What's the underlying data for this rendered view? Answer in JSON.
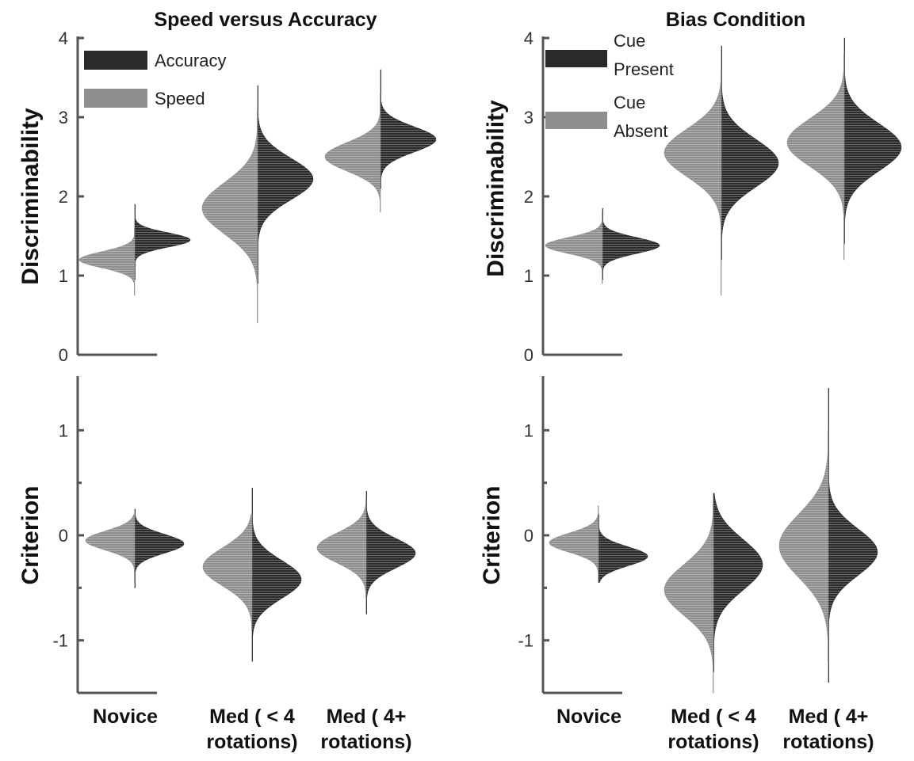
{
  "chart_data": [
    {
      "panel": "top-left",
      "type": "violin",
      "title": "Speed versus Accuracy",
      "ylabel": "Discriminability",
      "ylim": [
        0,
        4
      ],
      "yticks": [
        "0",
        "1",
        "2",
        "3",
        "4"
      ],
      "legend": {
        "position": "top-left",
        "entries": [
          [
            "Accuracy"
          ],
          [
            "Speed"
          ]
        ]
      },
      "series": [
        {
          "name": "Accuracy",
          "side": "right",
          "color": "#2a2a2a",
          "peaks": [
            1.45,
            2.22,
            2.72
          ],
          "spread": [
            0.09,
            0.26,
            0.16
          ],
          "range": [
            [
              0.95,
              1.9
            ],
            [
              0.9,
              3.4
            ],
            [
              2.1,
              3.6
            ]
          ]
        },
        {
          "name": "Speed",
          "side": "left",
          "color": "#8e8e8e",
          "peaks": [
            1.2,
            1.85,
            2.5
          ],
          "spread": [
            0.1,
            0.32,
            0.18
          ],
          "range": [
            [
              0.75,
              1.6
            ],
            [
              0.4,
              3.1
            ],
            [
              1.8,
              3.3
            ]
          ]
        }
      ]
    },
    {
      "panel": "top-right",
      "type": "violin",
      "title": "Bias Condition",
      "ylabel": "Discriminability",
      "ylim": [
        0,
        4
      ],
      "yticks": [
        "0",
        "1",
        "2",
        "3",
        "4"
      ],
      "legend": {
        "position": "top-left",
        "entries": [
          [
            "Cue",
            "Present"
          ],
          [
            "Cue",
            "Absent"
          ]
        ]
      },
      "series": [
        {
          "name": "Cue Present",
          "side": "right",
          "color": "#2a2a2a",
          "peaks": [
            1.38,
            2.42,
            2.62
          ],
          "spread": [
            0.1,
            0.3,
            0.3
          ],
          "range": [
            [
              0.95,
              1.85
            ],
            [
              1.2,
              3.9
            ],
            [
              1.4,
              4.0
            ]
          ]
        },
        {
          "name": "Cue Absent",
          "side": "left",
          "color": "#8e8e8e",
          "peaks": [
            1.38,
            2.55,
            2.68
          ],
          "spread": [
            0.1,
            0.3,
            0.3
          ],
          "range": [
            [
              0.9,
              1.8
            ],
            [
              0.75,
              3.6
            ],
            [
              1.2,
              3.8
            ]
          ]
        }
      ]
    },
    {
      "panel": "bottom-left",
      "type": "violin",
      "ylabel": "Criterion",
      "ylim": [
        -1.5,
        1.5
      ],
      "yticks": [
        "-1",
        "0",
        "1"
      ],
      "series": [
        {
          "name": "Accuracy",
          "side": "right",
          "color": "#2a2a2a",
          "peaks": [
            -0.08,
            -0.42,
            -0.17
          ],
          "spread": [
            0.09,
            0.18,
            0.14
          ],
          "range": [
            [
              -0.5,
              0.25
            ],
            [
              -1.2,
              0.45
            ],
            [
              -0.75,
              0.42
            ]
          ]
        },
        {
          "name": "Speed",
          "side": "left",
          "color": "#8e8e8e",
          "peaks": [
            -0.05,
            -0.3,
            -0.12
          ],
          "spread": [
            0.09,
            0.18,
            0.14
          ],
          "range": [
            [
              -0.45,
              0.2
            ],
            [
              -0.9,
              0.2
            ],
            [
              -0.6,
              0.35
            ]
          ]
        }
      ]
    },
    {
      "panel": "bottom-right",
      "type": "violin",
      "ylabel": "Criterion",
      "ylim": [
        -1.5,
        1.5
      ],
      "yticks": [
        "-1",
        "0",
        "1"
      ],
      "series": [
        {
          "name": "Cue Present",
          "side": "right",
          "color": "#2a2a2a",
          "peaks": [
            -0.2,
            -0.28,
            -0.16
          ],
          "spread": [
            0.09,
            0.24,
            0.22
          ],
          "range": [
            [
              -0.45,
              0.2
            ],
            [
              -1.3,
              0.4
            ],
            [
              -1.4,
              1.4
            ]
          ]
        },
        {
          "name": "Cue Absent",
          "side": "left",
          "color": "#8e8e8e",
          "peaks": [
            -0.07,
            -0.52,
            -0.1
          ],
          "spread": [
            0.09,
            0.24,
            0.3
          ],
          "range": [
            [
              -0.35,
              0.28
            ],
            [
              -1.5,
              0.3
            ],
            [
              -1.2,
              1.0
            ]
          ]
        }
      ]
    }
  ],
  "categories": [
    [
      "Novice"
    ],
    [
      "Med ( < 4",
      "rotations)"
    ],
    [
      "Med ( 4+",
      "rotations)"
    ]
  ]
}
